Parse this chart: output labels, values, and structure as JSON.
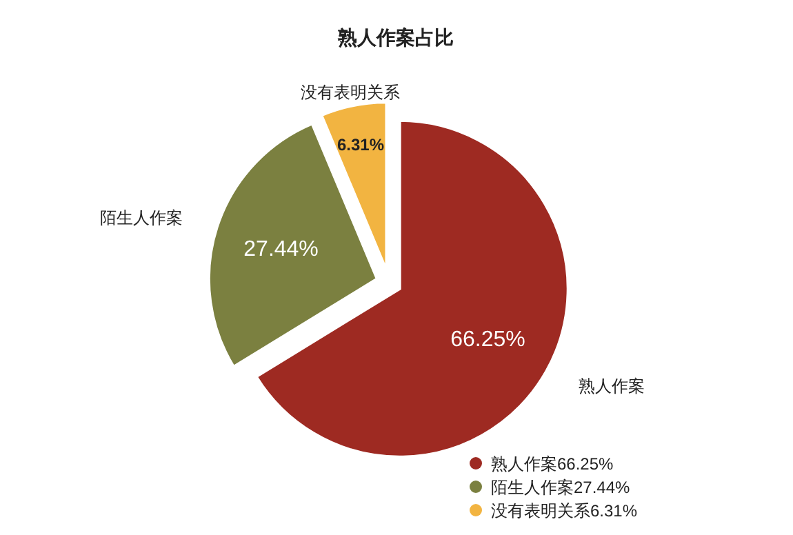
{
  "chart_data": {
    "type": "pie",
    "title": "熟人作案占比",
    "categories": [
      "熟人作案",
      "陌生人作案",
      "没有表明关系"
    ],
    "values": [
      66.25,
      27.44,
      6.31
    ],
    "value_labels": [
      "66.25%",
      "27.44%",
      "6.31%"
    ],
    "colors": [
      "#9e2a22",
      "#7b8040",
      "#f2b441"
    ],
    "legend": "bottom right"
  }
}
